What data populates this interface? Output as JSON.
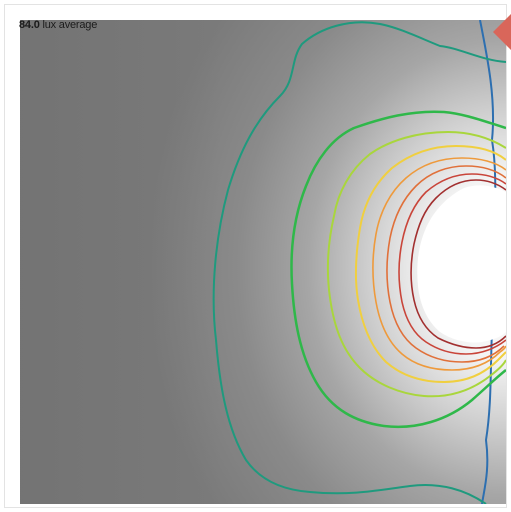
{
  "readout": {
    "value": "84.0",
    "unit_label": "lux average"
  },
  "nav": {
    "icon": "triangle-left-icon",
    "color": "#d9665a"
  },
  "colors": {
    "contour_blue": "#2d6fb0",
    "contour_teal": "#1f9a7e",
    "contour_green": "#2fb84a",
    "contour_lightgreen": "#a9d63c",
    "contour_yellow": "#f0cf3f",
    "contour_orange": "#ee9a3c",
    "contour_darkorange": "#e0703a",
    "contour_red": "#c9453a",
    "contour_darkred": "#a23030"
  }
}
